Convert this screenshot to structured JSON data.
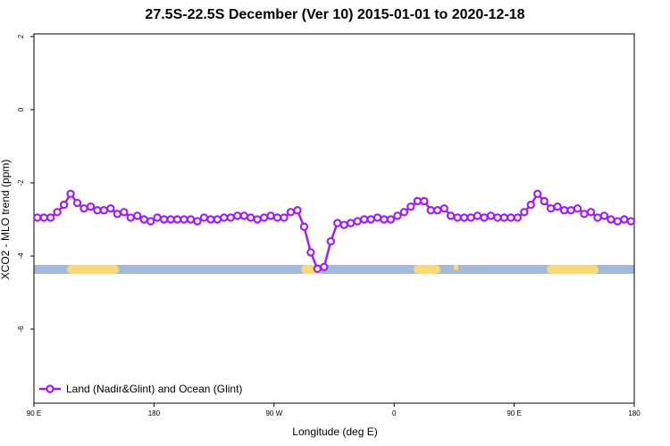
{
  "chart_data": {
    "type": "line",
    "title": "27.5S-22.5S December (Ver 10)   2015-01-01 to 2020-12-18",
    "x_label": "Longitude (deg E)",
    "y_label": "XCO2 - MLO trend (ppm)",
    "x": [
      92.5,
      97.5,
      102.5,
      107.5,
      112.5,
      117.5,
      122.5,
      127.5,
      132.5,
      137.5,
      142.5,
      147.5,
      152.5,
      157.5,
      162.5,
      167.5,
      172.5,
      177.5,
      182.5,
      187.5,
      192.5,
      197.5,
      202.5,
      207.5,
      212.5,
      217.5,
      222.5,
      227.5,
      232.5,
      237.5,
      242.5,
      247.5,
      252.5,
      257.5,
      262.5,
      267.5,
      272.5,
      277.5,
      282.5,
      287.5,
      292.5,
      297.5,
      302.5,
      307.5,
      312.5,
      317.5,
      322.5,
      327.5,
      332.5,
      337.5,
      342.5,
      347.5,
      352.5,
      357.5,
      362.5,
      367.5,
      372.5,
      377.5,
      382.5,
      387.5,
      392.5,
      397.5,
      402.5,
      407.5,
      412.5,
      417.5,
      422.5,
      427.5,
      432.5,
      437.5,
      442.5,
      447.5,
      452.5,
      457.5,
      462.5,
      467.5,
      472.5,
      477.5,
      482.5,
      487.5,
      492.5,
      497.5,
      502.5,
      507.5,
      512.5,
      517.5,
      522.5,
      527.5,
      532.5,
      537.5
    ],
    "series": [
      {
        "name": "Land (Nadir&Glint) and Ocean (Glint)",
        "color": "#a020f0",
        "values": [
          -2.95,
          -2.95,
          -2.95,
          -2.8,
          -2.6,
          -2.3,
          -2.55,
          -2.7,
          -2.65,
          -2.75,
          -2.75,
          -2.7,
          -2.85,
          -2.8,
          -2.95,
          -2.9,
          -3.0,
          -3.05,
          -2.95,
          -3.0,
          -3.0,
          -3.0,
          -3.0,
          -3.0,
          -3.05,
          -2.95,
          -3.0,
          -3.0,
          -2.95,
          -2.95,
          -2.9,
          -2.9,
          -2.95,
          -3.0,
          -2.95,
          -2.9,
          -2.95,
          -2.95,
          -2.8,
          -2.75,
          -3.2,
          -3.9,
          -4.35,
          -4.3,
          -3.6,
          -3.1,
          -3.15,
          -3.1,
          -3.05,
          -3.0,
          -3.0,
          -2.95,
          -3.0,
          -3.0,
          -2.9,
          -2.8,
          -2.65,
          -2.5,
          -2.5,
          -2.75,
          -2.75,
          -2.7,
          -2.9,
          -2.95,
          -2.95,
          -2.95,
          -2.9,
          -2.95,
          -2.9,
          -2.95,
          -2.95,
          -2.95,
          -2.95,
          -2.8,
          -2.6,
          -2.3,
          -2.5,
          -2.7,
          -2.65,
          -2.75,
          -2.75,
          -2.7,
          -2.85,
          -2.8,
          -2.95,
          -2.9,
          -3.0,
          -3.05,
          -3.0,
          -3.05
        ]
      }
    ],
    "xlim": [
      90,
      540
    ],
    "xticks": [
      {
        "value": 90,
        "label": "90 E"
      },
      180,
      {
        "value": 270,
        "label": "90 W"
      },
      {
        "value": 360,
        "label": "0"
      },
      {
        "value": 450,
        "label": "90 E"
      },
      180
    ],
    "ylim": [
      -8,
      2
    ],
    "yticks": [
      -6,
      -4,
      -2,
      0,
      2
    ],
    "legend": "bottom-left"
  }
}
